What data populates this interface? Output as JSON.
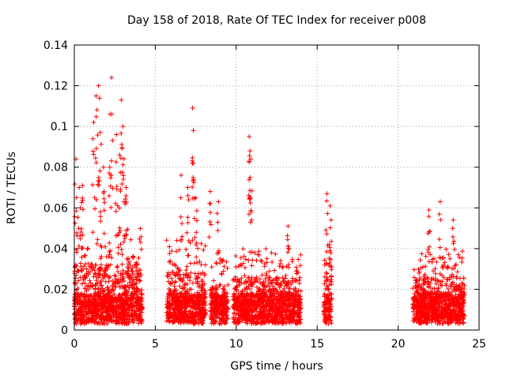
{
  "chart_data": {
    "type": "scatter",
    "title": "Day 158 of 2018, Rate Of TEC Index for receiver p008",
    "xlabel": "GPS time / hours",
    "ylabel": "ROTI / TECUs",
    "xlim": [
      0,
      25
    ],
    "ylim": [
      0,
      0.14
    ],
    "xticks": [
      0,
      5,
      10,
      15,
      20,
      25
    ],
    "yticks": [
      0,
      0.02,
      0.04,
      0.06,
      0.08,
      0.1,
      0.12,
      0.14
    ],
    "xtick_labels": [
      "0",
      "5",
      "10",
      "15",
      "20",
      "25"
    ],
    "ytick_labels": [
      "0",
      "0.02",
      "0.04",
      "0.06",
      "0.08",
      "0.1",
      "0.12",
      "0.14"
    ],
    "grid": true,
    "marker": "+",
    "color": "#ff0000",
    "segments": [
      {
        "x": [
          0,
          4.2
        ],
        "typical_max": 0.04
      },
      {
        "x": [
          5.7,
          8.1
        ],
        "typical_max": 0.035
      },
      {
        "x": [
          8.4,
          9.5
        ],
        "typical_max": 0.025
      },
      {
        "x": [
          9.8,
          14.0
        ],
        "typical_max": 0.03
      },
      {
        "x": [
          15.4,
          15.9
        ],
        "typical_max": 0.04
      },
      {
        "x": [
          20.9,
          24.1
        ],
        "typical_max": 0.03
      }
    ],
    "peaks": [
      {
        "x": 0.1,
        "y": 0.084
      },
      {
        "x": 0.3,
        "y": 0.07
      },
      {
        "x": 0.5,
        "y": 0.071
      },
      {
        "x": 1.2,
        "y": 0.102
      },
      {
        "x": 1.35,
        "y": 0.115
      },
      {
        "x": 1.5,
        "y": 0.12
      },
      {
        "x": 1.6,
        "y": 0.097
      },
      {
        "x": 1.8,
        "y": 0.08
      },
      {
        "x": 2.2,
        "y": 0.106
      },
      {
        "x": 2.3,
        "y": 0.124
      },
      {
        "x": 2.6,
        "y": 0.096
      },
      {
        "x": 2.8,
        "y": 0.086
      },
      {
        "x": 2.9,
        "y": 0.113
      },
      {
        "x": 3.0,
        "y": 0.1
      },
      {
        "x": 3.2,
        "y": 0.07
      },
      {
        "x": 6.6,
        "y": 0.076
      },
      {
        "x": 7.0,
        "y": 0.07
      },
      {
        "x": 7.3,
        "y": 0.109
      },
      {
        "x": 7.35,
        "y": 0.098
      },
      {
        "x": 7.5,
        "y": 0.065
      },
      {
        "x": 8.4,
        "y": 0.068
      },
      {
        "x": 8.9,
        "y": 0.063
      },
      {
        "x": 10.8,
        "y": 0.095
      },
      {
        "x": 10.85,
        "y": 0.088
      },
      {
        "x": 10.9,
        "y": 0.084
      },
      {
        "x": 13.2,
        "y": 0.051
      },
      {
        "x": 15.6,
        "y": 0.067
      },
      {
        "x": 15.8,
        "y": 0.061
      },
      {
        "x": 21.9,
        "y": 0.059
      },
      {
        "x": 22.6,
        "y": 0.063
      },
      {
        "x": 23.4,
        "y": 0.054
      }
    ]
  }
}
